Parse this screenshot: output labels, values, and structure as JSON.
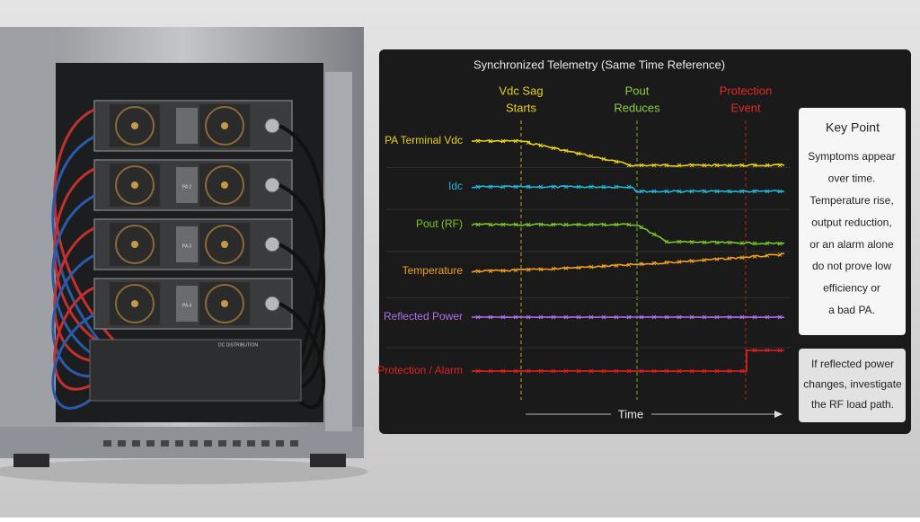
{
  "panel": {
    "title": "Synchronized Telemetry (Same Time Reference)",
    "events": [
      {
        "lines": [
          "Vdc Sag",
          "Starts"
        ],
        "color": "#e8d020"
      },
      {
        "lines": [
          "Pout",
          "Reduces"
        ],
        "color": "#8ccf3a"
      },
      {
        "lines": [
          "Protection",
          "Event"
        ],
        "color": "#e02828"
      }
    ],
    "traces": [
      {
        "label": "PA Terminal Vdc",
        "color": "#e8d020"
      },
      {
        "label": "Idc",
        "color": "#22b8dc"
      },
      {
        "label": "Pout (RF)",
        "color": "#7ac52c"
      },
      {
        "label": "Temperature",
        "color": "#f0a020"
      },
      {
        "label": "Reflected Power",
        "color": "#b070e8"
      },
      {
        "label": "Protection / Alarm",
        "color": "#e02020"
      }
    ],
    "time_label": "Time"
  },
  "key_point": {
    "title": "Key Point",
    "lines": [
      "Symptoms appear",
      "over time.",
      "Temperature rise,",
      "output reduction,",
      "or an alarm alone",
      "do not prove low",
      "efficiency or",
      "a bad PA."
    ]
  },
  "note": {
    "lines": [
      "If reflected power",
      "changes, investigate",
      "the RF load path."
    ]
  },
  "rack": {
    "modules": [
      "PA 2",
      "PA 3",
      "PA 4"
    ],
    "distribution": "DC DISTRIBUTION"
  }
}
